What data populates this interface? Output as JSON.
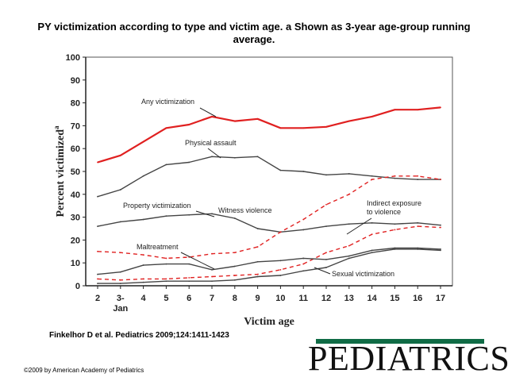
{
  "title": "PY victimization according to type and victim age. a Shown as 3-year age-group running average.",
  "citation": "Finkelhor D et al. Pediatrics 2009;124:1411-1423",
  "copyright": "©2009 by American Academy of Pediatrics",
  "logo_text": "PEDIATRICS",
  "colors": {
    "red": "#e02020",
    "dark": "#444444",
    "logo_bar": "#0f6b45"
  },
  "chart_data": {
    "type": "line",
    "xlabel": "Victim age",
    "ylabel": "Percent victimized",
    "ylabel_superscript": "a",
    "categories": [
      "2",
      "3-\nJan",
      "4",
      "5",
      "6",
      "7",
      "8",
      "9",
      "10",
      "11",
      "12",
      "13",
      "14",
      "15",
      "16",
      "17"
    ],
    "ylim": [
      0,
      100
    ],
    "yticks": [
      0,
      10,
      20,
      30,
      40,
      50,
      60,
      70,
      80,
      90,
      100
    ],
    "series": [
      {
        "name": "Any victimization",
        "style": "red-solid",
        "values": [
          54,
          57,
          63,
          69,
          70.5,
          74,
          72,
          73,
          69,
          69,
          69.5,
          72,
          74,
          77,
          77,
          78
        ]
      },
      {
        "name": "Physical assault",
        "style": "dark-solid",
        "values": [
          39,
          42,
          48,
          53,
          54,
          56.5,
          56,
          56.5,
          50.5,
          50,
          48.5,
          49,
          48,
          47,
          46.5,
          46.5
        ]
      },
      {
        "name": "Property victimization",
        "style": "dark-solid",
        "values": [
          26,
          28,
          29,
          30.5,
          31,
          31.5,
          29.5,
          25,
          23.5,
          24.5,
          26,
          27,
          27.5,
          27,
          27.5,
          26.5
        ]
      },
      {
        "name": "Witness violence",
        "style": "red-dashed",
        "values": [
          15,
          14.5,
          13.5,
          12,
          12.5,
          14,
          14.5,
          17,
          23.5,
          29,
          35.5,
          40,
          46.5,
          48,
          48,
          46.5
        ]
      },
      {
        "name": "Indirect exposure to violence",
        "style": "red-dashed",
        "values": [
          3,
          2.5,
          3,
          3,
          3.5,
          4,
          4.5,
          5,
          7,
          9.5,
          14.5,
          17.5,
          22.5,
          24.5,
          26,
          25.5
        ]
      },
      {
        "name": "Maltreatment",
        "style": "dark-solid",
        "values": [
          5,
          6,
          9,
          9.5,
          9.5,
          7,
          8.5,
          10.5,
          11,
          12,
          11.5,
          13,
          15.5,
          16.5,
          16.5,
          16
        ]
      },
      {
        "name": "Sexual victimization",
        "style": "dark-solid",
        "values": [
          1,
          1,
          1.5,
          2,
          2,
          2,
          2.5,
          4,
          4.5,
          6.5,
          8,
          12,
          14.5,
          16,
          16,
          15.5
        ]
      }
    ],
    "annotations": [
      {
        "text": "Any victimization",
        "series": 0
      },
      {
        "text": "Physical assault",
        "series": 1
      },
      {
        "text": "Property victimization",
        "series": 2
      },
      {
        "text": "Witness violence",
        "series": 3
      },
      {
        "text": "Indirect exposure\nto violence",
        "series": 4
      },
      {
        "text": "Maltreatment",
        "series": 5
      },
      {
        "text": "Sexual victimization",
        "series": 6
      }
    ]
  }
}
